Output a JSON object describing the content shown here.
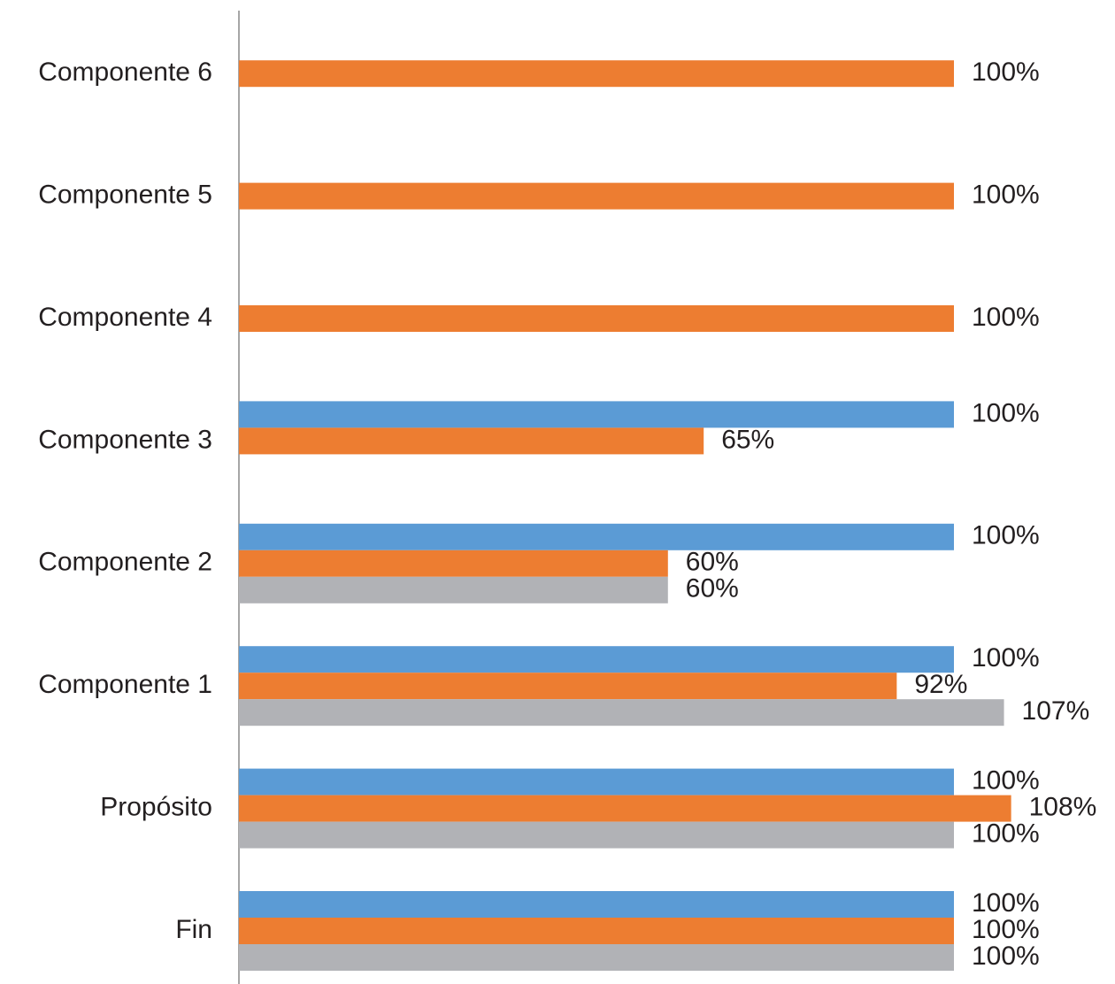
{
  "chart_data": {
    "type": "hbar",
    "categories": [
      "Fin",
      "Propósito",
      "Componente 1",
      "Componente 2",
      "Componente 3",
      "Componente 4",
      "Componente 5",
      "Componente 6"
    ],
    "series": [
      {
        "color": "#5b9bd5",
        "values": [
          100,
          100,
          100,
          100,
          100,
          null,
          null,
          null
        ],
        "value_labels": [
          "100%",
          "100%",
          "100%",
          "100%",
          "100%",
          null,
          null,
          null
        ]
      },
      {
        "color": "#ed7d31",
        "values": [
          100,
          108,
          92,
          60,
          65,
          100,
          100,
          100
        ],
        "value_labels": [
          "100%",
          "108%",
          "92%",
          "60%",
          "65%",
          "100%",
          "100%",
          "100%"
        ]
      },
      {
        "color": "#b1b2b6",
        "values": [
          100,
          100,
          107,
          60,
          null,
          null,
          null,
          null
        ],
        "value_labels": [
          "100%",
          "100%",
          "107%",
          "60%",
          null,
          null,
          null,
          null
        ]
      }
    ],
    "xlim": [
      0,
      120
    ]
  }
}
